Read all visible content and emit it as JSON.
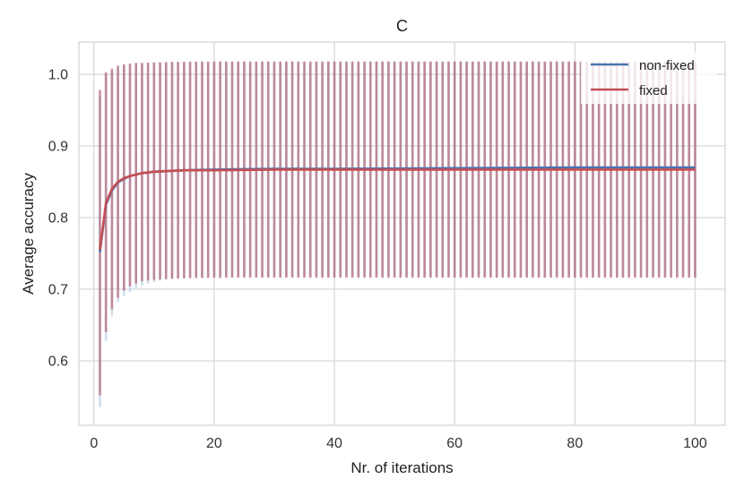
{
  "chart_data": {
    "type": "line",
    "title": "C",
    "xlabel": "Nr. of iterations",
    "ylabel": "Average accuracy",
    "xlim": [
      -2.5,
      105
    ],
    "ylim": [
      0.51,
      1.045
    ],
    "grid": true,
    "x_ticks": [
      0,
      20,
      40,
      60,
      80,
      100
    ],
    "y_ticks": [
      0.6,
      0.7,
      0.8,
      0.9,
      1.0
    ],
    "x_tick_labels": [
      "0",
      "20",
      "40",
      "60",
      "80",
      "100"
    ],
    "y_tick_labels": [
      "0.6",
      "0.7",
      "0.8",
      "0.9",
      "1.0"
    ],
    "legend_position": "top-right",
    "series": [
      {
        "name": "non-fixed",
        "color": "#4c72b0",
        "errorbar_color": "#a9c4e0",
        "mean": [
          [
            1,
            0.752
          ],
          [
            2,
            0.818
          ],
          [
            3,
            0.838
          ],
          [
            4,
            0.849
          ],
          [
            5,
            0.854
          ],
          [
            6,
            0.858
          ],
          [
            7,
            0.86
          ],
          [
            8,
            0.862
          ],
          [
            10,
            0.864
          ],
          [
            15,
            0.866
          ],
          [
            20,
            0.867
          ],
          [
            30,
            0.868
          ],
          [
            40,
            0.868
          ],
          [
            60,
            0.869
          ],
          [
            80,
            0.87
          ],
          [
            100,
            0.87
          ]
        ],
        "errorbars": [
          [
            1,
            0.535,
            0.97
          ],
          [
            2,
            0.628,
            1.0
          ],
          [
            3,
            0.662,
            1.005
          ],
          [
            4,
            0.682,
            1.01
          ]
        ],
        "errorbar_steady": [
          0.718,
          1.017
        ]
      },
      {
        "name": "fixed",
        "color": "#c44e52",
        "errorbar_color": "#b05a6e",
        "mean": [
          [
            1,
            0.755
          ],
          [
            2,
            0.82
          ],
          [
            3,
            0.84
          ],
          [
            4,
            0.85
          ],
          [
            5,
            0.855
          ],
          [
            6,
            0.858
          ],
          [
            7,
            0.86
          ],
          [
            8,
            0.862
          ],
          [
            10,
            0.864
          ],
          [
            15,
            0.866
          ],
          [
            20,
            0.866
          ],
          [
            30,
            0.867
          ],
          [
            40,
            0.867
          ],
          [
            60,
            0.867
          ],
          [
            80,
            0.867
          ],
          [
            100,
            0.867
          ]
        ],
        "errorbars": [
          [
            1,
            0.552,
            0.978
          ],
          [
            2,
            0.64,
            1.003
          ],
          [
            3,
            0.672,
            1.008
          ],
          [
            4,
            0.688,
            1.012
          ],
          [
            5,
            0.698,
            1.014
          ],
          [
            6,
            0.704,
            1.015
          ],
          [
            7,
            0.708,
            1.016
          ],
          [
            8,
            0.711,
            1.016
          ]
        ],
        "errorbar_steady": [
          0.716,
          1.018
        ]
      }
    ]
  }
}
